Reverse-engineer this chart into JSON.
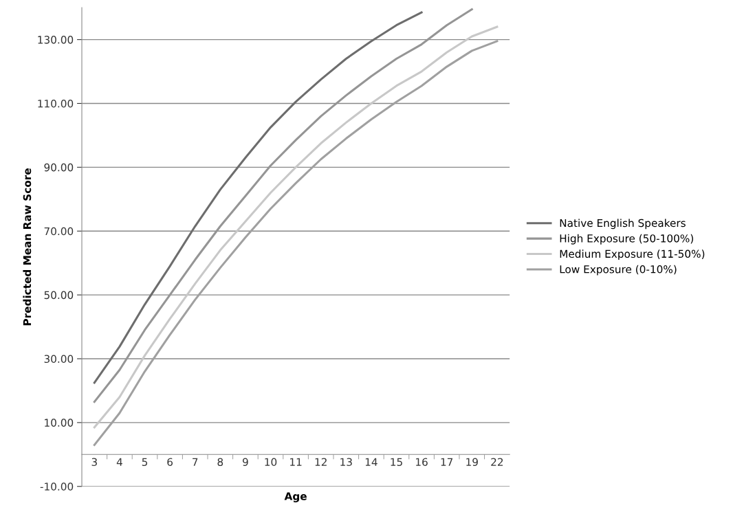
{
  "chart_data": {
    "type": "line",
    "xlabel": "Age",
    "ylabel": "Predicted Mean Raw Score",
    "categories": [
      "3",
      "4",
      "5",
      "6",
      "7",
      "8",
      "9",
      "10",
      "11",
      "12",
      "13",
      "14",
      "15",
      "16",
      "17",
      "19",
      "22"
    ],
    "series": [
      {
        "name": "Native English Speakers",
        "color": "#6d6d6d",
        "values": [
          22.5,
          33.8,
          47,
          59,
          71.5,
          83,
          93,
          102.5,
          110.5,
          117.5,
          124,
          129.5,
          134.5,
          138.5,
          null,
          null,
          null
        ]
      },
      {
        "name": "High Exposure (50-100%)",
        "color": "#959595",
        "values": [
          16.5,
          26.5,
          39,
          50,
          61,
          71.5,
          81,
          90.5,
          98.5,
          106,
          112.5,
          118.5,
          124,
          128.5,
          134.5,
          139.5,
          null
        ]
      },
      {
        "name": "Medium Exposure (11-50%)",
        "color": "#c8c8c8",
        "values": [
          8.5,
          18,
          31,
          42.5,
          53.5,
          64,
          73,
          82,
          90,
          97.5,
          104,
          110,
          115.5,
          120,
          126,
          131,
          134
        ]
      },
      {
        "name": "Low Exposure (0-10%)",
        "color": "#a0a0a0",
        "values": [
          3,
          13,
          26,
          37.5,
          48.5,
          58.5,
          68,
          77,
          85,
          92.5,
          99,
          105,
          110.5,
          115.5,
          121.5,
          126.5,
          129.5
        ]
      }
    ],
    "ylim": [
      -10,
      140
    ],
    "yticks": [
      {
        "value": -10,
        "label": "-10.00"
      },
      {
        "value": 10,
        "label": "10.00"
      },
      {
        "value": 30,
        "label": "30.00"
      },
      {
        "value": 50,
        "label": "50.00"
      },
      {
        "value": 70,
        "label": "70.00"
      },
      {
        "value": 90,
        "label": "90.00"
      },
      {
        "value": 110,
        "label": "110.00"
      },
      {
        "value": 130,
        "label": "130.00"
      }
    ],
    "grid": "y",
    "legend": "right",
    "marker": "none",
    "line_style": "solid"
  }
}
